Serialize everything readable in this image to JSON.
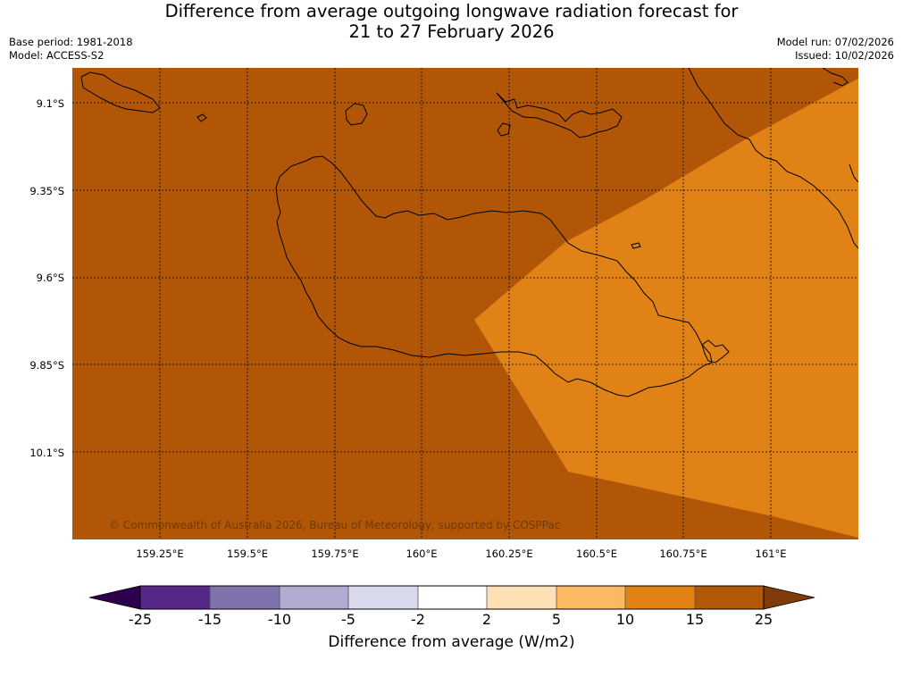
{
  "title": {
    "line1": "Difference from average outgoing longwave radiation forecast for",
    "line2": "21 to 27 February 2026"
  },
  "meta_left": {
    "base_period": "Base period: 1981-2018",
    "model": "Model: ACCESS-S2"
  },
  "meta_right": {
    "model_run": "Model run: 07/02/2026",
    "issued": "Issued: 10/02/2026"
  },
  "map": {
    "lat_labels": [
      "9.1°S",
      "9.35°S",
      "9.6°S",
      "9.85°S",
      "10.1°S"
    ],
    "lon_labels": [
      "159.25°E",
      "159.5°E",
      "159.75°E",
      "160°E",
      "160.25°E",
      "160.5°E",
      "160.75°E",
      "161°E"
    ],
    "copyright": "© Commonwealth of Australia 2026, Bureau of Meteorology, supported by COSPPac",
    "colors": {
      "band_15_25": "#b15607",
      "band_10_15": "#e08215",
      "coastline": "#000000"
    }
  },
  "colorbar": {
    "ticks": [
      "-25",
      "-15",
      "-10",
      "-5",
      "-2",
      "2",
      "5",
      "10",
      "15",
      "25"
    ],
    "colors": [
      "#2d004b",
      "#542788",
      "#8073ac",
      "#b2abd2",
      "#d8daeb",
      "#ffffff",
      "#fee0b6",
      "#fdb863",
      "#e08214",
      "#b35806",
      "#7f3b08"
    ],
    "label": "Difference from average (W/m2)"
  }
}
